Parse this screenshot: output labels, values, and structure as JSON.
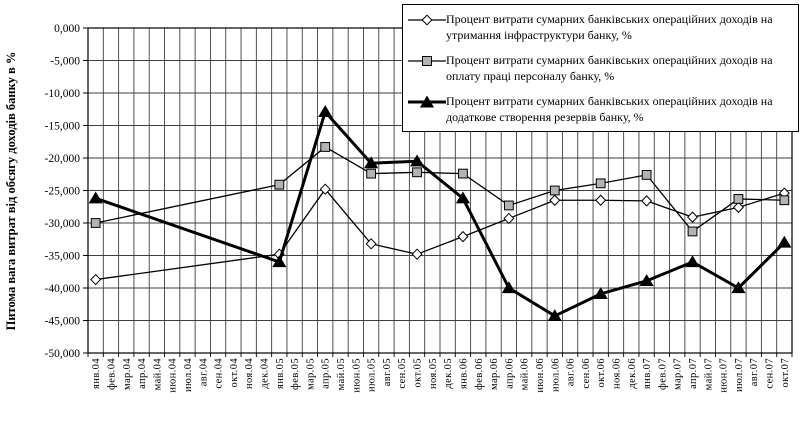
{
  "chart_data": {
    "type": "line",
    "title": "",
    "xlabel": "",
    "ylabel": "Питома вага витрат від обсягу доходів банку в %",
    "ylim": [
      -50,
      0
    ],
    "grid": true,
    "legend_position": "top-right",
    "y_ticks": [
      "0,000",
      "-5,000",
      "-10,000",
      "-15,000",
      "-20,000",
      "-25,000",
      "-30,000",
      "-35,000",
      "-40,000",
      "-45,000",
      "-50,000"
    ],
    "categories": [
      "янв.04",
      "фев.04",
      "мар.04",
      "апр.04",
      "май.04",
      "июн.04",
      "июл.04",
      "авг.04",
      "сен.04",
      "окт.04",
      "ноя.04",
      "дек.04",
      "янв.05",
      "фев.05",
      "мар.05",
      "апр.05",
      "май.05",
      "июн.05",
      "июл.05",
      "авг.05",
      "сен.05",
      "окт.05",
      "ноя.05",
      "дек.05",
      "янв.06",
      "фев.06",
      "мар.06",
      "апр.06",
      "май.06",
      "июн.06",
      "июл.06",
      "авг.06",
      "сен.06",
      "окт.06",
      "ноя.06",
      "дек.06",
      "янв.07",
      "фев.07",
      "мар.07",
      "апр.07",
      "май.07",
      "июн.07",
      "июл.07",
      "авг.07",
      "сен.07",
      "окт.07"
    ],
    "marker_categories": [
      "янв.04",
      "янв.05",
      "апр.05",
      "июл.05",
      "окт.05",
      "янв.06",
      "апр.06",
      "июл.06",
      "окт.06",
      "янв.07",
      "апр.07",
      "июл.07",
      "окт.07"
    ],
    "marker_category_indices": [
      0,
      12,
      15,
      18,
      21,
      24,
      27,
      30,
      33,
      36,
      39,
      42,
      45
    ],
    "series": [
      {
        "name": "Процент витрати сумарних банківських операційних доходів на утримання інфраструктури банку, %",
        "marker": "diamond",
        "line_width": 1.3,
        "values": [
          -38.7,
          -34.8,
          -24.8,
          -33.2,
          -34.8,
          -32.1,
          -29.3,
          -26.5,
          -26.5,
          -26.6,
          -29.1,
          -27.6,
          -25.4
        ]
      },
      {
        "name": "Процент витрати сумарних банківських операційних доходів на оплату праці персоналу банку, %",
        "marker": "square",
        "line_width": 1.3,
        "values": [
          -30.0,
          -24.1,
          -18.3,
          -22.4,
          -22.2,
          -22.4,
          -27.3,
          -25.0,
          -23.9,
          -22.6,
          -31.3,
          -26.3,
          -26.5
        ]
      },
      {
        "name": "Процент витрати сумарних банківських операційних доходів на додаткове створення резервів банку, %",
        "marker": "triangle",
        "line_width": 3,
        "values": [
          -26.2,
          -36.0,
          -12.9,
          -20.8,
          -20.5,
          -26.2,
          -40.0,
          -44.3,
          -40.9,
          -38.9,
          -36.0,
          -40.0,
          -33.0
        ]
      }
    ]
  },
  "colors": {
    "line": "#000000",
    "grid": "#3f3f3f",
    "plot_border": "#000000",
    "diamond_fill": "#ffffff",
    "square_fill": "#b3b3b3",
    "triangle_fill": "#000000",
    "background": "#ffffff"
  }
}
